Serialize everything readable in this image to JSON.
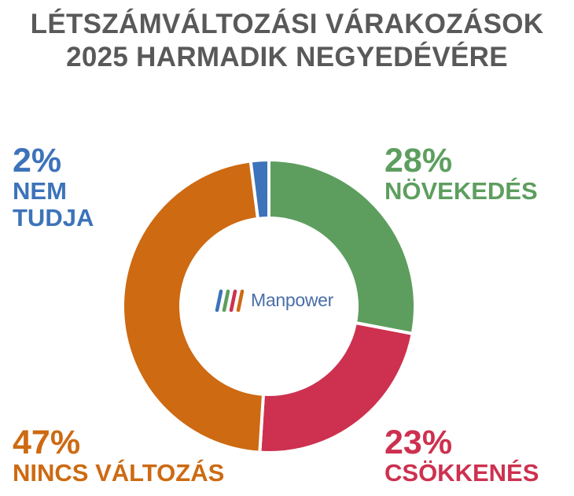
{
  "chart_data": {
    "type": "donut",
    "title": [
      "LÉTSZÁMVÁLTOZÁSI VÁRAKOZÁSOK",
      "2025 HARMADIK NEGYEDÉVÉRE"
    ],
    "center_logo_text": "Manpower",
    "slices": [
      {
        "label_lines": [
          "NÖVEKEDÉS"
        ],
        "value": 28,
        "value_label": "28%",
        "color": "#5d9e5f"
      },
      {
        "label_lines": [
          "CSÖKKENÉS"
        ],
        "value": 23,
        "value_label": "23%",
        "color": "#cd314f"
      },
      {
        "label_lines": [
          "NINCS VÁLTOZÁS"
        ],
        "value": 47,
        "value_label": "47%",
        "color": "#cd6a12"
      },
      {
        "label_lines": [
          "NEM",
          "TUDJA"
        ],
        "value": 2,
        "value_label": "2%",
        "color": "#3c73ba"
      }
    ]
  }
}
